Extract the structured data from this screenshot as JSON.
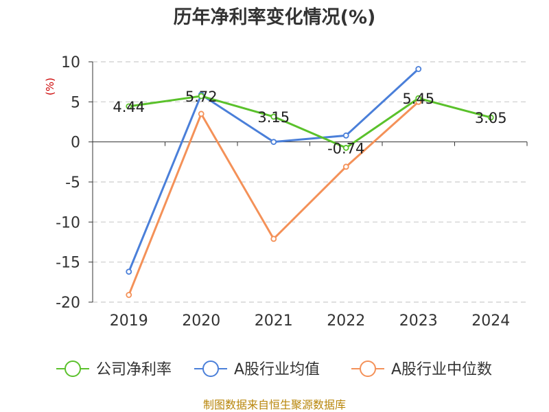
{
  "chart_data": {
    "type": "line",
    "title": "历年净利率变化情况(%)",
    "ylabel": "(%)",
    "ylim": [
      -20,
      10
    ],
    "yticks": [
      10,
      5,
      0,
      -5,
      -10,
      -15,
      -20
    ],
    "categories": [
      "2019",
      "2020",
      "2021",
      "2022",
      "2023",
      "2024"
    ],
    "grid": true,
    "legend_position": "bottom",
    "series": [
      {
        "name": "公司净利率",
        "color": "#5ac12b",
        "values": [
          4.44,
          5.72,
          3.15,
          -0.74,
          5.45,
          3.05
        ],
        "labels": [
          "4.44",
          "5.72",
          "3.15",
          "-0.74",
          "5.45",
          "3.05"
        ]
      },
      {
        "name": "A股行业均值",
        "color": "#4a7fd9",
        "values": [
          -16.2,
          5.9,
          0.0,
          0.8,
          9.1,
          null
        ]
      },
      {
        "name": "A股行业中位数",
        "color": "#f49158",
        "values": [
          -19.1,
          3.5,
          -12.1,
          -3.1,
          5.0,
          null
        ]
      }
    ]
  },
  "source": "制图数据来自恒生聚源数据库"
}
